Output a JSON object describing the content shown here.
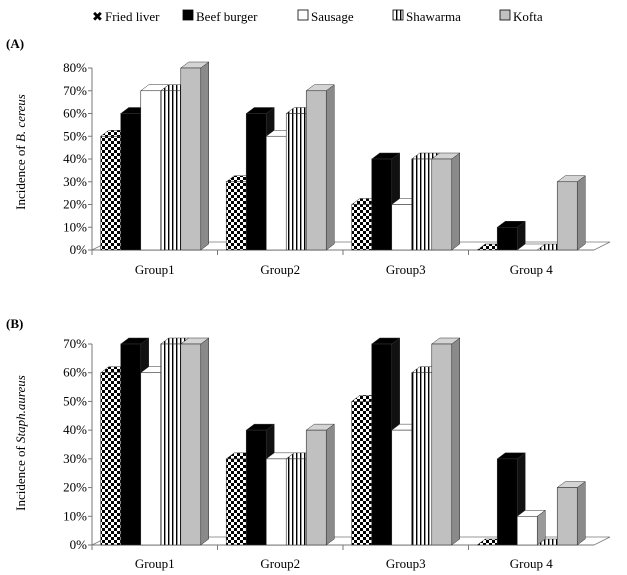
{
  "legend": [
    {
      "name": "Fried liver",
      "pattern": "checker"
    },
    {
      "name": "Beef burger",
      "pattern": "black"
    },
    {
      "name": "Sausage",
      "pattern": "white"
    },
    {
      "name": "Shawarma",
      "pattern": "vlines"
    },
    {
      "name": "Kofta",
      "pattern": "gray"
    }
  ],
  "chart_data": [
    {
      "type": "bar",
      "panel_label": "(A)",
      "ylabel_prefix": "Incidence of ",
      "ylabel_italic": "B. cereus",
      "categories": [
        "Group1",
        "Group2",
        "Group3",
        "Group 4"
      ],
      "yticks": [
        "0%",
        "10%",
        "20%",
        "30%",
        "40%",
        "50%",
        "60%",
        "70%",
        "80%"
      ],
      "ylim": [
        0,
        80
      ],
      "series": [
        {
          "name": "Fried liver",
          "values": [
            50,
            30,
            20,
            0
          ]
        },
        {
          "name": "Beef burger",
          "values": [
            60,
            60,
            40,
            10
          ]
        },
        {
          "name": "Sausage",
          "values": [
            70,
            50,
            20,
            0
          ]
        },
        {
          "name": "Shawarma",
          "values": [
            70,
            60,
            40,
            0
          ]
        },
        {
          "name": "Kofta",
          "values": [
            80,
            70,
            40,
            30
          ]
        }
      ]
    },
    {
      "type": "bar",
      "panel_label": "(B)",
      "ylabel_prefix": "Incidence of ",
      "ylabel_italic": "Staph.aureus",
      "categories": [
        "Group1",
        "Group2",
        "Group3",
        "Group 4"
      ],
      "yticks": [
        "0%",
        "10%",
        "20%",
        "30%",
        "40%",
        "50%",
        "60%",
        "70%"
      ],
      "ylim": [
        0,
        70
      ],
      "series": [
        {
          "name": "Fried liver",
          "values": [
            60,
            30,
            50,
            0
          ]
        },
        {
          "name": "Beef burger",
          "values": [
            70,
            40,
            70,
            30
          ]
        },
        {
          "name": "Sausage",
          "values": [
            60,
            30,
            40,
            10
          ]
        },
        {
          "name": "Shawarma",
          "values": [
            70,
            30,
            60,
            0
          ]
        },
        {
          "name": "Kofta",
          "values": [
            70,
            40,
            70,
            20
          ]
        }
      ]
    }
  ]
}
